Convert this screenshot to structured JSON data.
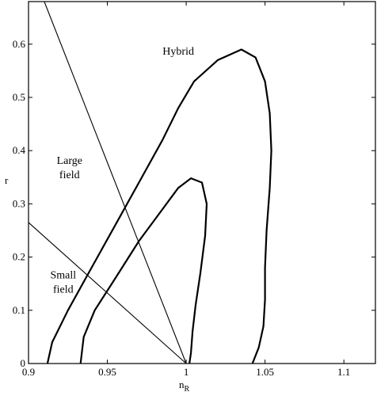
{
  "chart_data": {
    "type": "line",
    "title": "",
    "xlabel": "n",
    "xlabel_subscript": "R",
    "ylabel": "r",
    "xlim": [
      0.9,
      1.12
    ],
    "ylim": [
      0,
      0.68
    ],
    "xticks": [
      0.9,
      0.95,
      1,
      1.05,
      1.1
    ],
    "xtick_labels": [
      "0.9",
      "0.95",
      "1",
      "1.05",
      "1.1"
    ],
    "yticks": [
      0,
      0.1,
      0.2,
      0.3,
      0.4,
      0.5,
      0.6
    ],
    "ytick_labels": [
      "0",
      "0.1",
      "0.2",
      "0.3",
      "0.4",
      "0.5",
      "0.6"
    ],
    "grid": false,
    "region_labels": [
      {
        "lines": [
          "Hybrid"
        ],
        "x": 0.995,
        "y": 0.58
      },
      {
        "lines": [
          "Large",
          "field"
        ],
        "x": 0.926,
        "y": 0.375
      },
      {
        "lines": [
          "Small",
          "field"
        ],
        "x": 0.922,
        "y": 0.16
      }
    ],
    "boundary_lines": [
      {
        "name": "large-hybrid-boundary",
        "x": [
          0.91,
          1.0
        ],
        "y": [
          0.68,
          0.0
        ]
      },
      {
        "name": "small-large-boundary",
        "x": [
          0.9,
          1.0
        ],
        "y": [
          0.265,
          0.0
        ]
      }
    ],
    "contours": [
      {
        "name": "outer-contour",
        "x": [
          0.912,
          0.915,
          0.925,
          0.94,
          0.955,
          0.97,
          0.985,
          0.995,
          1.005,
          1.02,
          1.035,
          1.044,
          1.05,
          1.053,
          1.054,
          1.053,
          1.051,
          1.05,
          1.05,
          1.049,
          1.046,
          1.042
        ],
        "y": [
          0.0,
          0.04,
          0.1,
          0.18,
          0.26,
          0.34,
          0.42,
          0.48,
          0.53,
          0.57,
          0.59,
          0.575,
          0.53,
          0.47,
          0.4,
          0.33,
          0.25,
          0.18,
          0.12,
          0.07,
          0.03,
          0.0
        ]
      },
      {
        "name": "inner-contour",
        "x": [
          0.933,
          0.935,
          0.942,
          0.955,
          0.97,
          0.985,
          0.995,
          1.003,
          1.01,
          1.013,
          1.012,
          1.009,
          1.006,
          1.004,
          1.003,
          1.002
        ],
        "y": [
          0.0,
          0.05,
          0.1,
          0.16,
          0.23,
          0.29,
          0.33,
          0.348,
          0.34,
          0.3,
          0.24,
          0.17,
          0.11,
          0.06,
          0.02,
          0.0
        ]
      }
    ]
  }
}
